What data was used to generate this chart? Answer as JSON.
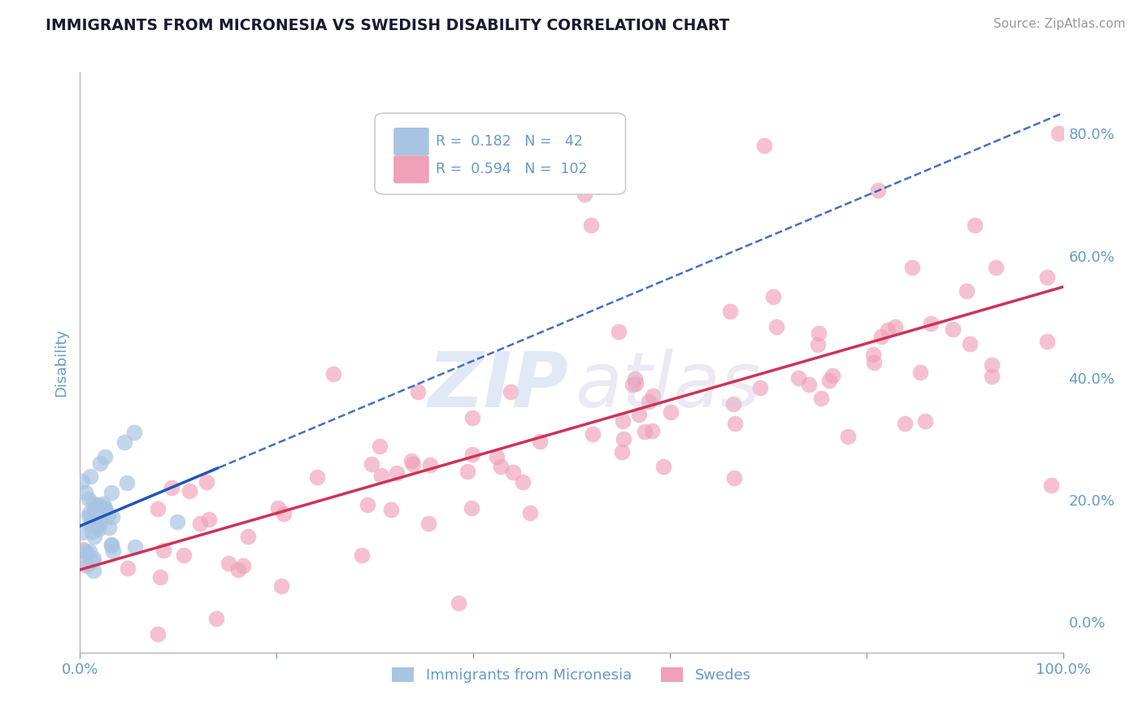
{
  "title": "IMMIGRANTS FROM MICRONESIA VS SWEDISH DISABILITY CORRELATION CHART",
  "source": "Source: ZipAtlas.com",
  "ylabel": "Disability",
  "R_blue": 0.182,
  "N_blue": 42,
  "R_pink": 0.594,
  "N_pink": 102,
  "blue_scatter_color": "#a8c4e2",
  "pink_scatter_color": "#f0a0b8",
  "blue_line_color": "#2255bb",
  "pink_line_color": "#cc3355",
  "background_color": "#ffffff",
  "grid_color": "#cccccc",
  "title_color": "#1a1a2e",
  "axis_label_color": "#6699cc",
  "watermark_color_zip": "#c8d8ee",
  "watermark_color_atlas": "#d0c8e8",
  "xlim": [
    0.0,
    1.0
  ],
  "ylim": [
    -0.05,
    0.9
  ],
  "y_ticks_right": [
    0.0,
    0.2,
    0.4,
    0.6,
    0.8
  ],
  "y_tick_labels_right": [
    "0.0%",
    "20.0%",
    "40.0%",
    "60.0%",
    "80.0%"
  ]
}
